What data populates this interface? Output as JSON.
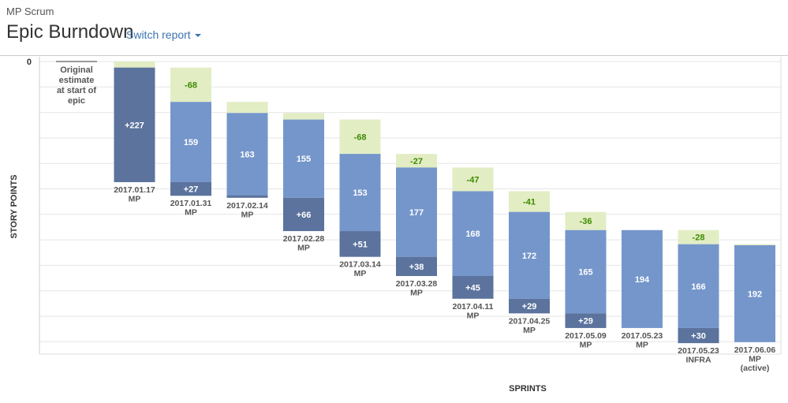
{
  "header": {
    "project": "MP Scrum",
    "title": "Epic Burndown",
    "switch_label": "Switch report"
  },
  "colors": {
    "added": "#5b739d",
    "remaining": "#7596cb",
    "completed": "#e2edc4",
    "completed_text": "#3e8a00",
    "grid": "#e5e5e5",
    "label": "#555555"
  },
  "chart_data": {
    "type": "bar",
    "subtype": "waterfall",
    "xlabel": "SPRINTS",
    "ylabel": "STORY POINTS",
    "y_zero_label": "0",
    "original_estimate": {
      "label": [
        "Original",
        "estimate",
        "at start of",
        "epic"
      ],
      "value": 0
    },
    "sprints": [
      {
        "label": [
          "2017.01.17",
          "MP"
        ],
        "completed": 12,
        "remaining": 0,
        "added": 227,
        "completed_label": "",
        "remaining_label": "",
        "added_label": "+227",
        "added_position": "top"
      },
      {
        "label": [
          "2017.01.31",
          "MP"
        ],
        "completed": 68,
        "remaining": 159,
        "added": 27,
        "completed_label": "-68",
        "remaining_label": "159",
        "added_label": "+27",
        "added_position": "bottom"
      },
      {
        "label": [
          "2017.02.14",
          "MP"
        ],
        "completed": 22,
        "remaining": 163,
        "added": 5,
        "completed_label": "",
        "remaining_label": "163",
        "added_label": "",
        "added_position": "bottom"
      },
      {
        "label": [
          "2017.02.28",
          "MP"
        ],
        "completed": 13,
        "remaining": 155,
        "added": 66,
        "completed_label": "",
        "remaining_label": "155",
        "added_label": "+66",
        "added_position": "bottom"
      },
      {
        "label": [
          "2017.03.14",
          "MP"
        ],
        "completed": 68,
        "remaining": 153,
        "added": 51,
        "completed_label": "-68",
        "remaining_label": "153",
        "added_label": "+51",
        "added_position": "bottom"
      },
      {
        "label": [
          "2017.03.28",
          "MP"
        ],
        "completed": 27,
        "remaining": 177,
        "added": 38,
        "completed_label": "-27",
        "remaining_label": "177",
        "added_label": "+38",
        "added_position": "bottom"
      },
      {
        "label": [
          "2017.04.11",
          "MP"
        ],
        "completed": 47,
        "remaining": 168,
        "added": 45,
        "completed_label": "-47",
        "remaining_label": "168",
        "added_label": "+45",
        "added_position": "bottom"
      },
      {
        "label": [
          "2017.04.25",
          "MP"
        ],
        "completed": 41,
        "remaining": 172,
        "added": 29,
        "completed_label": "-41",
        "remaining_label": "172",
        "added_label": "+29",
        "added_position": "bottom"
      },
      {
        "label": [
          "2017.05.09",
          "MP"
        ],
        "completed": 36,
        "remaining": 165,
        "added": 29,
        "completed_label": "-36",
        "remaining_label": "165",
        "added_label": "+29",
        "added_position": "bottom"
      },
      {
        "label": [
          "2017.05.23",
          "MP"
        ],
        "completed": 0,
        "remaining": 194,
        "added": 0,
        "completed_label": "",
        "remaining_label": "194",
        "added_label": "",
        "added_position": "bottom"
      },
      {
        "label": [
          "2017.05.23",
          "INFRA"
        ],
        "completed": 28,
        "remaining": 166,
        "added": 30,
        "completed_label": "-28",
        "remaining_label": "166",
        "added_label": "+30",
        "added_position": "bottom"
      },
      {
        "label": [
          "2017.06.06",
          "MP",
          "(active)"
        ],
        "completed": 2,
        "remaining": 192,
        "added": 0,
        "completed_label": "",
        "remaining_label": "192",
        "added_label": "",
        "added_position": "bottom"
      }
    ]
  }
}
